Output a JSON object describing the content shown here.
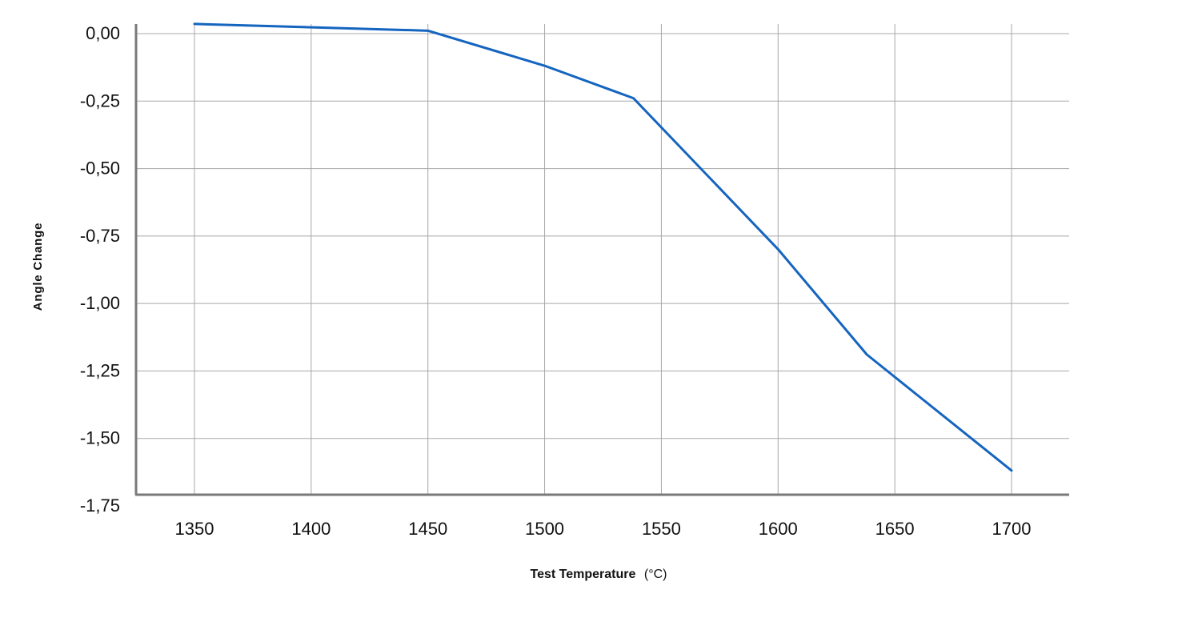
{
  "chart_data": {
    "type": "line",
    "title": "",
    "xlabel": "Test Temperature",
    "xlabel_unit": "(°C)",
    "ylabel": "Angle Change",
    "xlim": [
      1325,
      1725
    ],
    "ylim": [
      -1.75,
      0.0
    ],
    "x_ticks": [
      1350,
      1400,
      1450,
      1500,
      1550,
      1600,
      1650,
      1700
    ],
    "x_tick_labels": [
      "1350",
      "1400",
      "1450",
      "1500",
      "1550",
      "1600",
      "1650",
      "1700"
    ],
    "y_ticks": [
      0.0,
      -0.25,
      -0.5,
      -0.75,
      -1.0,
      -1.25,
      -1.5,
      -1.75
    ],
    "y_tick_labels": [
      "0,00",
      "-0,25",
      "-0,50",
      "-0,75",
      "-1,00",
      "-1,25",
      "-1,50",
      "-1,75"
    ],
    "grid": true,
    "legend": "none",
    "series": [
      {
        "color": "#1565c0",
        "x": [
          1350,
          1450,
          1500,
          1538,
          1600,
          1638,
          1700
        ],
        "y": [
          0.03,
          0.005,
          -0.125,
          -0.245,
          -0.805,
          -1.195,
          -1.625
        ]
      }
    ]
  }
}
